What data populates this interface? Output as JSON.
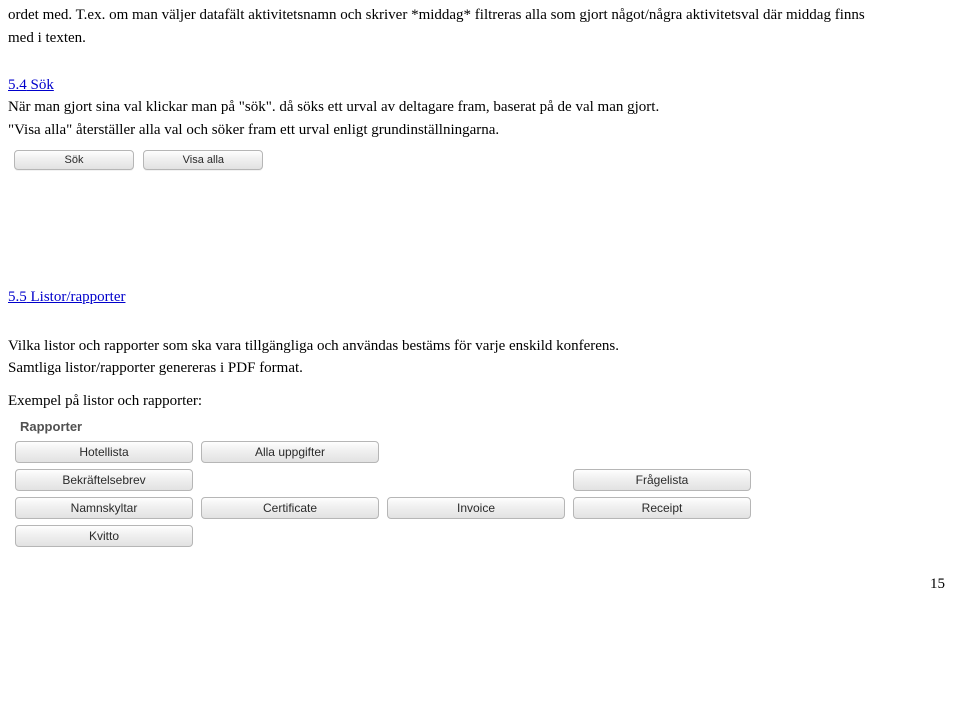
{
  "intro": {
    "line1": "ordet med. T.ex. om man väljer datafält aktivitetsnamn och skriver *middag* filtreras alla som gjort något/några aktivitetsval där middag finns",
    "line2": "med i texten."
  },
  "sec54": {
    "num": "5.4",
    "title": "Sök",
    "p1": "När man gjort sina val klickar man på \"sök\". då söks ett urval av deltagare fram, baserat på de val man gjort.",
    "p2": "\"Visa alla\" återställer alla val och söker fram ett urval enligt grundinställningarna."
  },
  "searchui": {
    "cropped": "",
    "btn_sok": "Sök",
    "btn_visa": "Visa alla"
  },
  "sec55": {
    "num": "5.5",
    "title": "Listor/rapporter",
    "p1": "Vilka listor och rapporter som ska vara tillgängliga och användas bestäms för varje enskild konferens.",
    "p2": "Samtliga listor/rapporter genereras i PDF format.",
    "p3": "Exempel på listor och rapporter:"
  },
  "rapporter": {
    "heading": "Rapporter",
    "grid": [
      [
        "Hotellista",
        "Alla uppgifter",
        "",
        ""
      ],
      [
        "Bekräftelsebrev",
        "",
        "",
        "Frågelista"
      ],
      [
        "Namnskyltar",
        "Certificate",
        "Invoice",
        "Receipt"
      ],
      [
        "Kvitto",
        "",
        "",
        ""
      ]
    ]
  },
  "page_num": "15"
}
